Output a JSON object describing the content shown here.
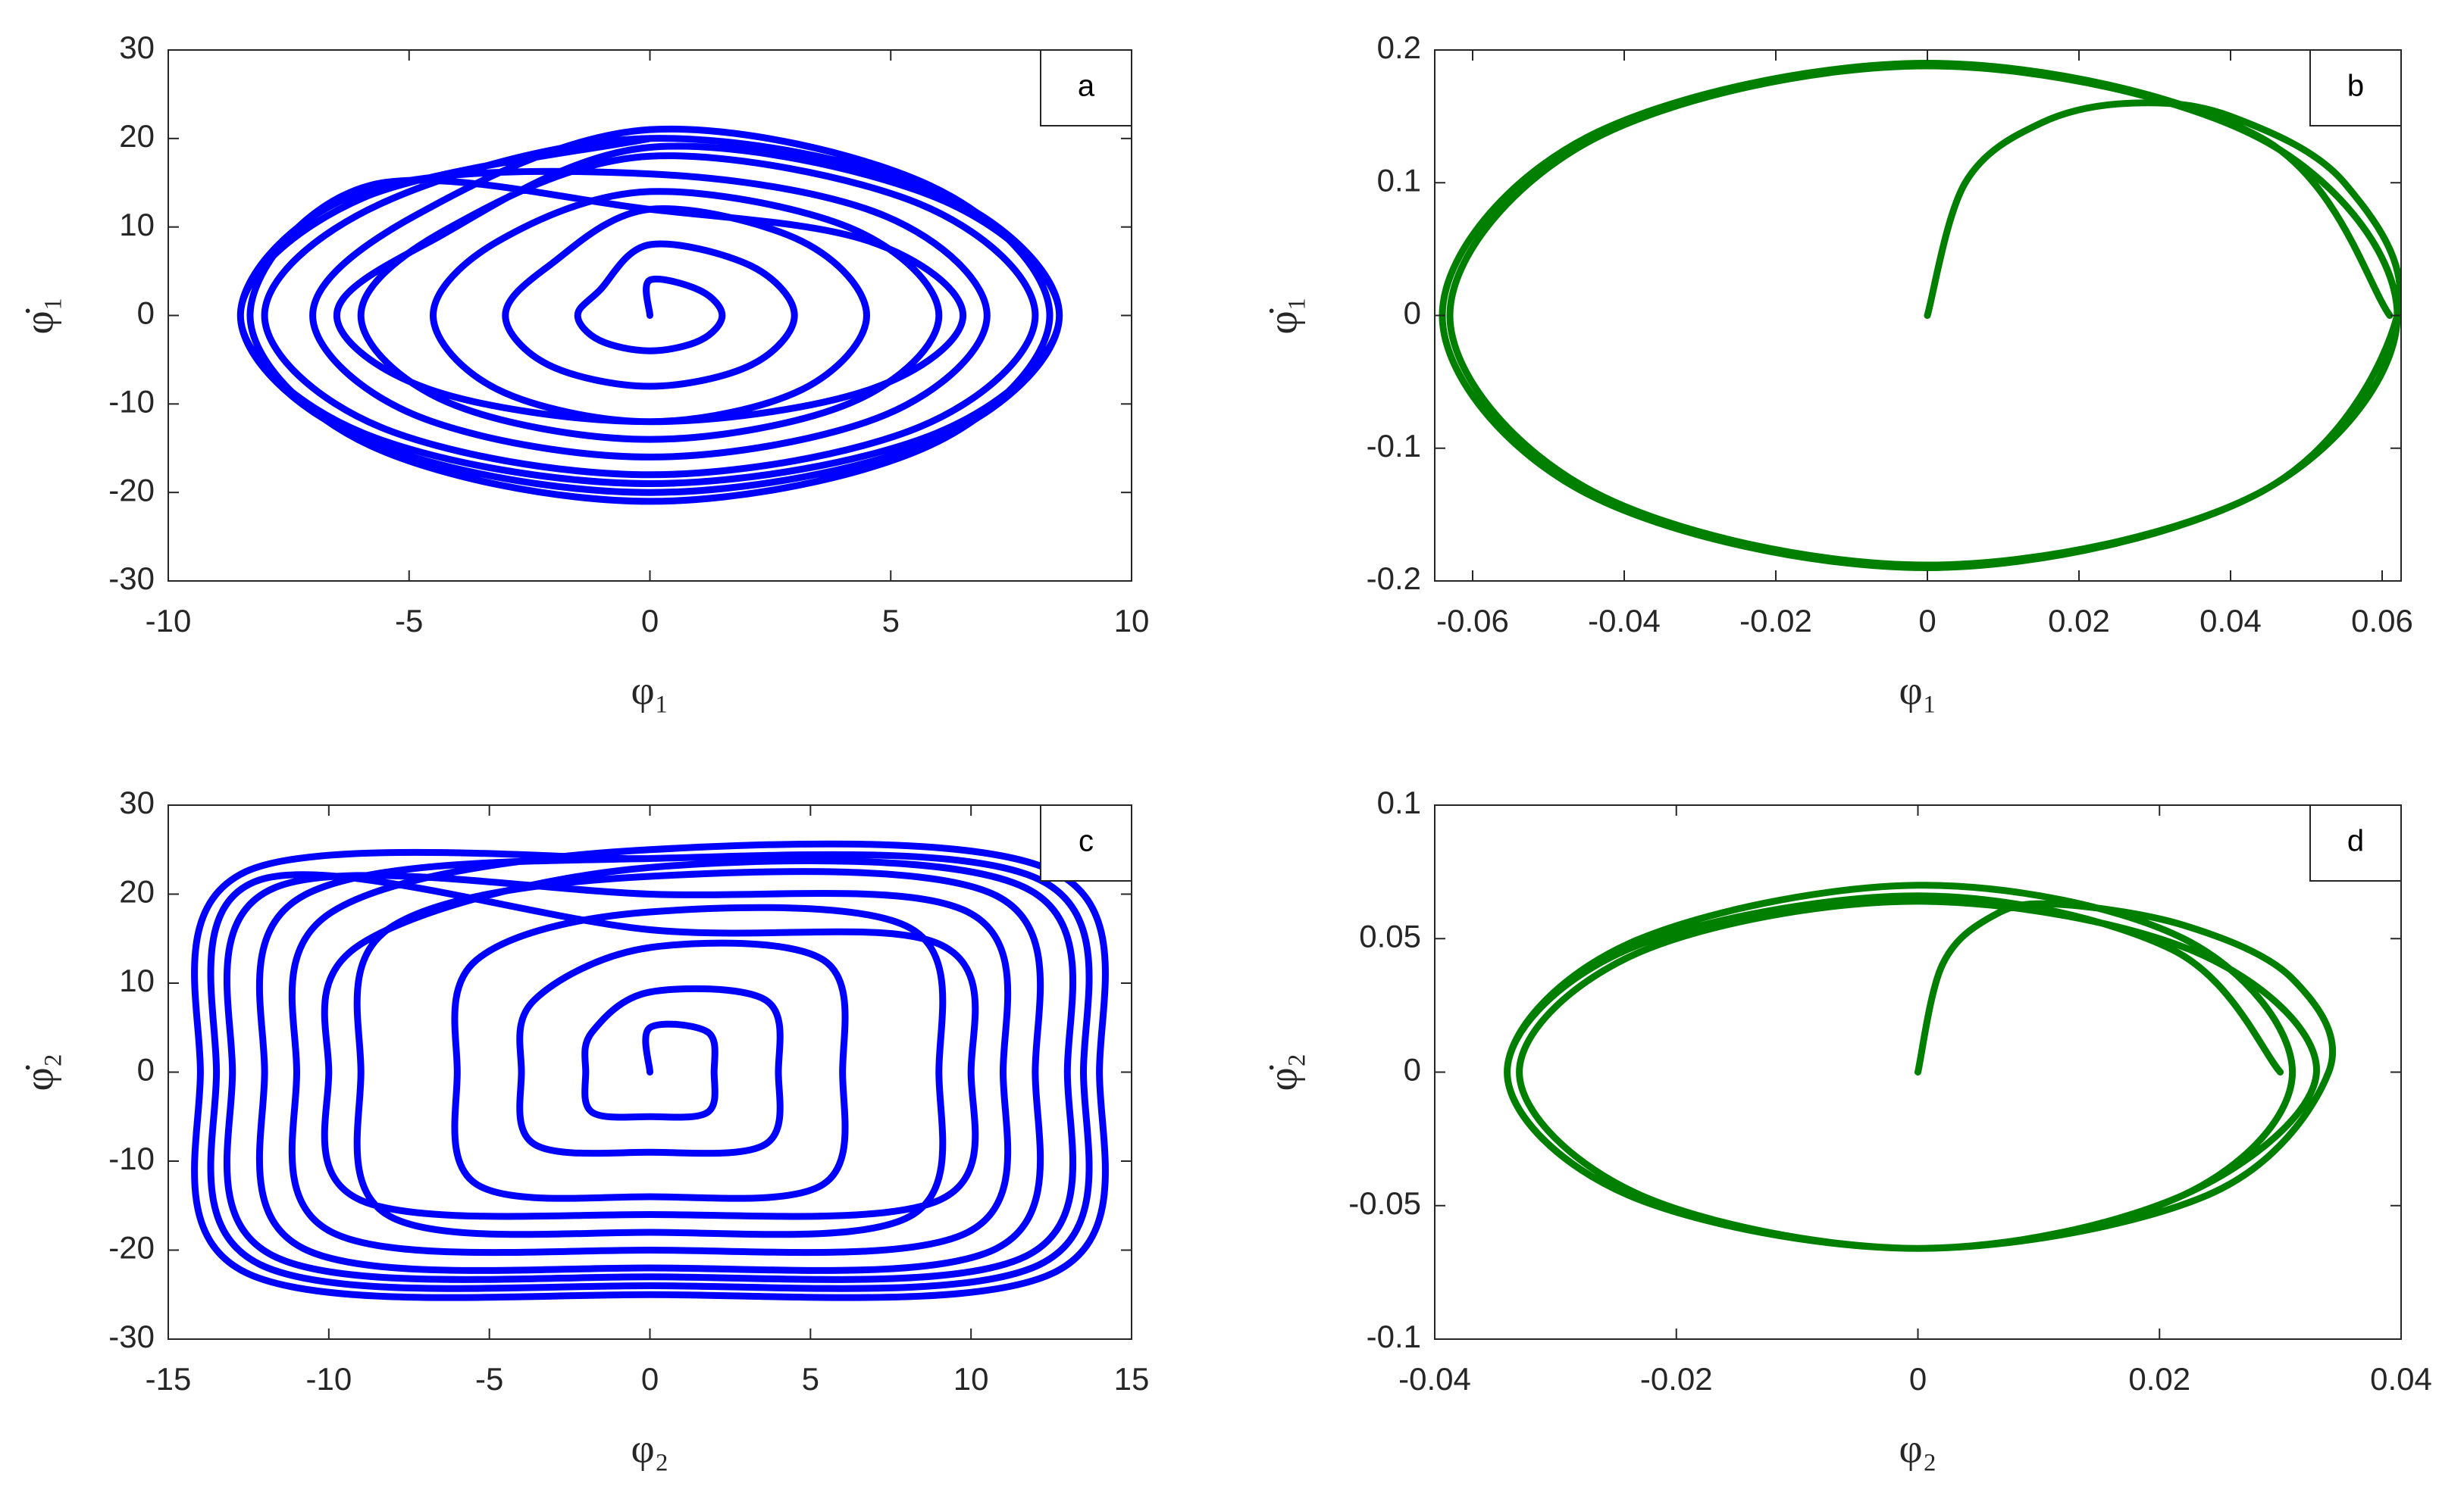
{
  "chart_data": [
    {
      "type": "line",
      "title": "a",
      "xlabel": "φ₁",
      "ylabel": "φ̇₁",
      "color": "#0000ff",
      "xlim": [
        -10,
        10
      ],
      "ylim": [
        -30,
        30
      ],
      "xticks": [
        -10,
        -5,
        0,
        5,
        10
      ],
      "yticks": [
        -30,
        -20,
        -10,
        0,
        10,
        20,
        30
      ],
      "x": [
        0,
        0,
        1.05,
        1.5,
        1.05,
        0,
        -1.05,
        -1.5,
        -1.05,
        0,
        2.1,
        3,
        2.1,
        0,
        -2.1,
        -3,
        -2.1,
        0,
        3.15,
        4.5,
        3.15,
        0,
        -3.15,
        -4.5,
        -3.15,
        0,
        4.2,
        6,
        4.2,
        0,
        -4.2,
        -6,
        -4.2,
        0,
        5.6,
        8,
        5.6,
        0,
        -5.6,
        -8,
        -5.6,
        0,
        5.95,
        8.5,
        5.95,
        0,
        -5.95,
        -8.5,
        -5.95,
        0,
        4.9,
        7,
        4.9,
        0,
        -4.9,
        -7,
        -4.9,
        0,
        5.81,
        8.3,
        5.81,
        0,
        -5.81,
        -8.3,
        -5.81,
        0,
        4.55,
        6.5,
        4.55,
        0,
        -4.55,
        -6.5,
        -4.55,
        0,
        5.95,
        8.5,
        5.95,
        0,
        -5.95,
        -8.5,
        -5.95,
        0
      ],
      "values": [
        0,
        4,
        2.8,
        0,
        -2.8,
        -4,
        -2.8,
        0,
        2.8,
        8,
        5.6,
        0,
        -5.6,
        -8,
        -5.6,
        0,
        5.6,
        12,
        8.4,
        0,
        -8.4,
        -12,
        -8.4,
        0,
        8.4,
        14,
        9.8,
        0,
        -9.8,
        -14,
        -9.8,
        0,
        9.8,
        18,
        12.6,
        0,
        -12.6,
        -18,
        -12.6,
        0,
        12.6,
        20,
        14,
        0,
        -14,
        -20,
        -14,
        0,
        14,
        16,
        11.2,
        0,
        -11.2,
        -16,
        -11.2,
        0,
        11.2,
        21,
        14.7,
        0,
        -14.7,
        -21,
        -14.7,
        0,
        14.7,
        12,
        8.4,
        0,
        -8.4,
        -12,
        -8.4,
        0,
        8.4,
        19,
        13.3,
        0,
        -13.3,
        -19,
        -13.3,
        0,
        13.3,
        20
      ]
    },
    {
      "type": "line",
      "title": "b",
      "xlabel": "φ₁",
      "ylabel": "φ̇₁",
      "color": "#007f00",
      "xlim": [
        -0.065,
        0.0625
      ],
      "ylim": [
        -0.2,
        0.2
      ],
      "xticks": [
        -0.06,
        -0.04,
        -0.02,
        0,
        0.02,
        0.04,
        0.06
      ],
      "yticks": [
        -0.2,
        -0.1,
        0,
        0.1,
        0.2
      ],
      "x": [
        0,
        0.005,
        0.015,
        0.027,
        0.04,
        0.055,
        0.062,
        0.044,
        0,
        -0.044,
        -0.063,
        -0.044,
        0,
        0.044,
        0.062,
        0.044,
        0,
        -0.045,
        -0.064,
        -0.045,
        0,
        0.044,
        0.061
      ],
      "values": [
        0,
        0.1,
        0.145,
        0.16,
        0.15,
        0.1,
        0,
        -0.133,
        -0.188,
        -0.133,
        0,
        0.133,
        0.188,
        0.133,
        0,
        -0.133,
        -0.19,
        -0.134,
        0,
        0.134,
        0.19,
        0.134,
        0
      ]
    },
    {
      "type": "line",
      "title": "c",
      "xlabel": "φ₂",
      "ylabel": "φ̇₂",
      "color": "#0000ff",
      "xlim": [
        -15,
        15
      ],
      "ylim": [
        -30,
        30
      ],
      "xticks": [
        -15,
        -10,
        -5,
        0,
        5,
        10,
        15
      ],
      "yticks": [
        -30,
        -20,
        -10,
        0,
        10,
        20,
        30
      ],
      "x": [
        0,
        0,
        1.8,
        2,
        1.8,
        0,
        -1.8,
        -2,
        -1.8,
        0,
        3.6,
        4,
        3.6,
        0,
        -3.6,
        -4,
        -3.6,
        0,
        5.4,
        6,
        5.4,
        0,
        -5.4,
        -6,
        -5.4,
        0,
        8.1,
        9,
        8.1,
        0,
        -8.1,
        -9,
        -8.1,
        0,
        10.8,
        12,
        10.8,
        0,
        -10.8,
        -12,
        -10.8,
        0,
        12.15,
        13.5,
        12.15,
        0,
        -12.15,
        -13.5,
        -12.15,
        0,
        9,
        10,
        9,
        0,
        -9,
        -10,
        -9,
        0,
        11.7,
        13,
        11.7,
        0,
        -11.7,
        -13,
        -11.7,
        0,
        9.9,
        11,
        9.9,
        0,
        -9.9,
        -11,
        -9.9,
        0,
        12.6,
        14,
        12.6,
        0,
        -12.6,
        -14,
        -12.6,
        0
      ],
      "values": [
        0,
        5,
        4.5,
        0,
        -4.5,
        -5,
        -4.5,
        0,
        4.5,
        9,
        8.1,
        0,
        -8.1,
        -9,
        -8.1,
        0,
        8.1,
        14,
        12.6,
        0,
        -12.6,
        -14,
        -12.6,
        0,
        12.6,
        18,
        16.2,
        0,
        -16.2,
        -18,
        -16.2,
        0,
        16.2,
        22,
        19.8,
        0,
        -19.8,
        -22,
        -19.8,
        0,
        19.8,
        24,
        21.6,
        0,
        -21.6,
        -24,
        -21.6,
        0,
        21.6,
        16,
        14.4,
        0,
        -14.4,
        -16,
        -14.4,
        0,
        14.4,
        23,
        20.7,
        0,
        -20.7,
        -23,
        -20.7,
        0,
        20.7,
        20,
        18,
        0,
        -18,
        -20,
        -18,
        0,
        18,
        25,
        22.5,
        0,
        -22.5,
        -25,
        -22.5,
        0,
        22.5,
        24
      ]
    },
    {
      "type": "line",
      "title": "d",
      "xlabel": "φ₂",
      "ylabel": "φ̇₂",
      "color": "#007f00",
      "xlim": [
        -0.04,
        0.04
      ],
      "ylim": [
        -0.1,
        0.1
      ],
      "xticks": [
        -0.04,
        -0.02,
        0,
        0.02,
        0.04
      ],
      "yticks": [
        -0.1,
        -0.05,
        0,
        0.05,
        0.1
      ],
      "x": [
        0,
        0.002,
        0.006,
        0.011,
        0.022,
        0.031,
        0.034,
        0.024,
        0,
        -0.024,
        -0.034,
        -0.024,
        0,
        0.022,
        0.031,
        0.022,
        0,
        -0.023,
        -0.033,
        -0.023,
        0,
        0.023,
        0.033,
        0.022,
        0,
        -0.024,
        -0.034,
        -0.024,
        0,
        0.021,
        0.03
      ],
      "values": [
        0,
        0.04,
        0.058,
        0.063,
        0.055,
        0.035,
        0,
        -0.046,
        -0.066,
        -0.046,
        0,
        0.048,
        0.07,
        0.05,
        0,
        -0.046,
        -0.066,
        -0.046,
        0,
        0.045,
        0.064,
        0.045,
        0,
        -0.046,
        -0.066,
        -0.046,
        0,
        0.046,
        0.066,
        0.046,
        0
      ]
    }
  ]
}
